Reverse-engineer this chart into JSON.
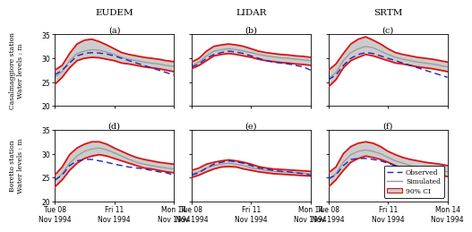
{
  "col_titles": [
    "EUDEM",
    "LIDAR",
    "SRTM"
  ],
  "row_labels": [
    "Casalmaggiore station\nWater levels : m",
    "Boretto station\nWater levels : m"
  ],
  "panel_labels": [
    [
      "(a)",
      "(b)",
      "(c)"
    ],
    [
      "(d)",
      "(e)",
      "(f)"
    ]
  ],
  "ylim": [
    20,
    35
  ],
  "yticks": [
    20,
    25,
    30,
    35
  ],
  "xtick_labels": [
    "Tue 08\nNov 1994",
    "Fri 11\nNov 1994",
    "Mon 14\nNov 1994"
  ],
  "legend_labels": [
    "Observed",
    "Simulated",
    "90% CI"
  ],
  "observed_color": "#2222bb",
  "simulated_color": "#999999",
  "ci_color": "#dd1111",
  "ci_fill_color": "#cccccc",
  "casalmaggiore": {
    "eudem": {
      "obs": [
        26.5,
        27.5,
        29.0,
        30.5,
        31.0,
        31.2,
        31.1,
        30.9,
        30.5,
        30.0,
        29.5,
        29.0,
        28.5,
        28.0,
        27.5,
        27.0,
        26.5
      ],
      "sim": [
        26.0,
        27.2,
        29.5,
        31.0,
        31.5,
        31.8,
        31.7,
        31.3,
        30.8,
        30.2,
        29.8,
        29.5,
        29.2,
        29.0,
        28.8,
        28.5,
        28.3
      ],
      "ci_upper": [
        27.5,
        28.5,
        31.0,
        33.0,
        33.8,
        34.0,
        33.5,
        32.8,
        32.0,
        31.2,
        30.8,
        30.5,
        30.2,
        30.0,
        29.8,
        29.5,
        29.3
      ],
      "ci_lower": [
        24.5,
        26.0,
        28.0,
        29.5,
        30.0,
        30.2,
        30.1,
        29.8,
        29.5,
        29.0,
        28.8,
        28.5,
        28.2,
        28.0,
        27.8,
        27.5,
        27.2
      ]
    },
    "lidar": {
      "obs": [
        28.2,
        28.8,
        30.0,
        30.8,
        31.2,
        31.5,
        31.3,
        31.0,
        30.5,
        30.0,
        29.5,
        29.2,
        29.0,
        28.8,
        28.5,
        28.2,
        27.5
      ],
      "sim": [
        28.5,
        29.2,
        30.5,
        31.5,
        31.8,
        32.0,
        31.8,
        31.5,
        31.2,
        30.8,
        30.5,
        30.3,
        30.1,
        30.0,
        29.8,
        29.7,
        29.5
      ],
      "ci_upper": [
        29.2,
        30.0,
        31.5,
        32.5,
        32.8,
        33.0,
        32.8,
        32.5,
        32.0,
        31.5,
        31.2,
        31.0,
        30.8,
        30.7,
        30.5,
        30.4,
        30.2
      ],
      "ci_lower": [
        27.8,
        28.5,
        29.5,
        30.5,
        30.8,
        31.0,
        30.8,
        30.5,
        30.2,
        29.8,
        29.5,
        29.3,
        29.1,
        29.0,
        28.8,
        28.7,
        28.5
      ]
    },
    "srtm": {
      "obs": [
        25.5,
        26.5,
        28.5,
        30.0,
        30.8,
        31.2,
        31.0,
        30.5,
        30.0,
        29.5,
        29.0,
        28.5,
        28.0,
        27.5,
        27.0,
        26.5,
        26.0
      ],
      "sim": [
        25.8,
        27.0,
        29.5,
        31.2,
        32.0,
        32.5,
        32.2,
        31.5,
        30.8,
        30.2,
        29.8,
        29.5,
        29.2,
        29.0,
        28.8,
        28.5,
        28.2
      ],
      "ci_upper": [
        27.5,
        28.8,
        31.0,
        33.0,
        34.0,
        34.5,
        33.8,
        33.0,
        32.0,
        31.2,
        30.8,
        30.5,
        30.2,
        30.0,
        29.8,
        29.5,
        29.2
      ],
      "ci_lower": [
        24.0,
        25.5,
        28.0,
        29.5,
        30.2,
        30.8,
        30.5,
        30.0,
        29.5,
        29.0,
        28.8,
        28.5,
        28.2,
        28.0,
        27.8,
        27.5,
        27.2
      ]
    }
  },
  "boretto": {
    "eudem": {
      "obs": [
        24.5,
        25.5,
        27.5,
        28.5,
        28.8,
        28.8,
        28.5,
        28.2,
        27.8,
        27.5,
        27.2,
        27.0,
        26.8,
        26.5,
        26.2,
        26.0,
        25.5
      ],
      "sim": [
        24.2,
        25.8,
        28.0,
        29.5,
        30.5,
        31.0,
        31.2,
        30.8,
        30.2,
        29.5,
        28.8,
        28.2,
        27.8,
        27.5,
        27.2,
        27.0,
        26.8
      ],
      "ci_upper": [
        25.5,
        27.2,
        29.8,
        31.2,
        32.0,
        32.5,
        32.5,
        32.0,
        31.2,
        30.5,
        29.8,
        29.2,
        28.8,
        28.5,
        28.2,
        28.0,
        27.8
      ],
      "ci_lower": [
        23.0,
        24.5,
        26.5,
        28.0,
        29.0,
        29.5,
        29.8,
        29.5,
        29.0,
        28.5,
        28.0,
        27.5,
        27.0,
        26.8,
        26.5,
        26.2,
        26.0
      ]
    },
    "lidar": {
      "obs": [
        25.5,
        26.0,
        27.0,
        27.8,
        28.2,
        28.5,
        28.3,
        28.0,
        27.5,
        27.0,
        26.8,
        26.5,
        26.3,
        26.2,
        26.0,
        25.8,
        25.5
      ],
      "sim": [
        25.8,
        26.2,
        27.0,
        27.5,
        27.8,
        28.0,
        27.8,
        27.5,
        27.0,
        26.8,
        26.5,
        26.3,
        26.2,
        26.1,
        26.0,
        25.9,
        25.8
      ],
      "ci_upper": [
        26.5,
        27.0,
        27.8,
        28.2,
        28.5,
        28.7,
        28.5,
        28.2,
        27.8,
        27.3,
        27.0,
        26.8,
        26.7,
        26.6,
        26.5,
        26.4,
        26.3
      ],
      "ci_lower": [
        25.0,
        25.5,
        26.2,
        26.8,
        27.2,
        27.3,
        27.2,
        26.8,
        26.5,
        26.2,
        26.0,
        25.8,
        25.7,
        25.6,
        25.5,
        25.4,
        25.3
      ]
    },
    "srtm": {
      "obs": [
        24.8,
        25.5,
        27.5,
        28.8,
        29.0,
        29.0,
        28.8,
        28.5,
        28.0,
        27.5,
        27.2,
        27.0,
        26.8,
        26.5,
        26.2,
        25.8,
        25.2
      ],
      "sim": [
        24.5,
        25.8,
        28.2,
        29.8,
        30.5,
        30.8,
        30.5,
        30.0,
        29.2,
        28.5,
        28.0,
        27.5,
        27.2,
        27.0,
        26.8,
        26.5,
        26.2
      ],
      "ci_upper": [
        26.0,
        27.2,
        30.0,
        31.5,
        32.2,
        32.5,
        32.2,
        31.5,
        30.5,
        29.8,
        29.2,
        28.8,
        28.5,
        28.2,
        28.0,
        27.8,
        27.5
      ],
      "ci_lower": [
        23.0,
        24.5,
        26.5,
        28.2,
        29.0,
        29.5,
        29.2,
        28.8,
        28.2,
        27.5,
        27.0,
        26.5,
        26.2,
        26.0,
        25.8,
        25.5,
        25.2
      ]
    }
  }
}
